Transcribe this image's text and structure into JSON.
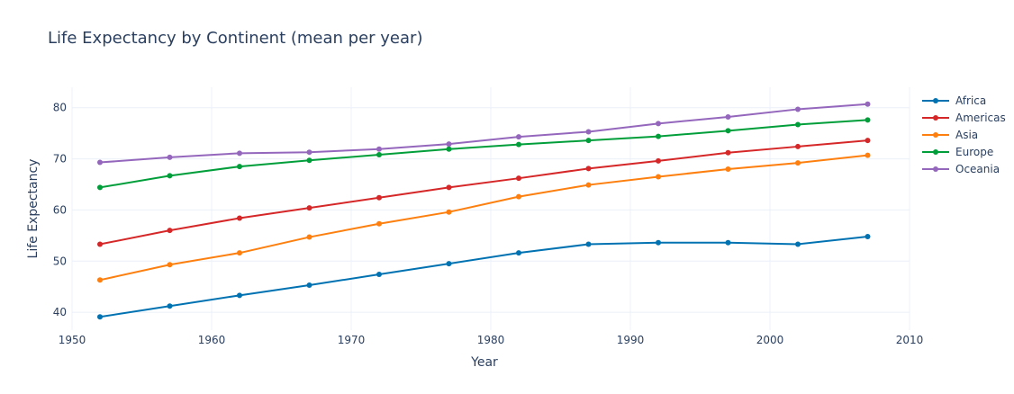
{
  "chart_data": {
    "type": "line",
    "title": "Life Expectancy by Continent (mean per year)",
    "xlabel": "Year",
    "ylabel": "Life Expectancy",
    "xlim": [
      1950,
      2010
    ],
    "ylim": [
      36.5,
      84
    ],
    "xticks": [
      1950,
      1960,
      1970,
      1980,
      1990,
      2000,
      2010
    ],
    "yticks": [
      40,
      50,
      60,
      70,
      80
    ],
    "grid": true,
    "legend_position": "top-right",
    "x": [
      1952,
      1957,
      1962,
      1967,
      1972,
      1977,
      1982,
      1987,
      1992,
      1997,
      2002,
      2007
    ],
    "series": [
      {
        "name": "Africa",
        "color": "#0072B2",
        "values": [
          39.1,
          41.2,
          43.3,
          45.3,
          47.4,
          49.5,
          51.6,
          53.3,
          53.6,
          53.6,
          53.3,
          54.8
        ]
      },
      {
        "name": "Americas",
        "color": "#D62728",
        "values": [
          53.3,
          56.0,
          58.4,
          60.4,
          62.4,
          64.4,
          66.2,
          68.1,
          69.6,
          71.2,
          72.4,
          73.6
        ]
      },
      {
        "name": "Asia",
        "color": "#FF7F0E",
        "values": [
          46.3,
          49.3,
          51.6,
          54.7,
          57.3,
          59.6,
          62.6,
          64.9,
          66.5,
          68.0,
          69.2,
          70.7
        ]
      },
      {
        "name": "Europe",
        "color": "#009E3A",
        "values": [
          64.4,
          66.7,
          68.5,
          69.7,
          70.8,
          71.9,
          72.8,
          73.6,
          74.4,
          75.5,
          76.7,
          77.6
        ]
      },
      {
        "name": "Oceania",
        "color": "#9467BD",
        "values": [
          69.3,
          70.3,
          71.1,
          71.3,
          71.9,
          72.9,
          74.3,
          75.3,
          76.9,
          78.2,
          79.7,
          80.7
        ]
      }
    ]
  }
}
